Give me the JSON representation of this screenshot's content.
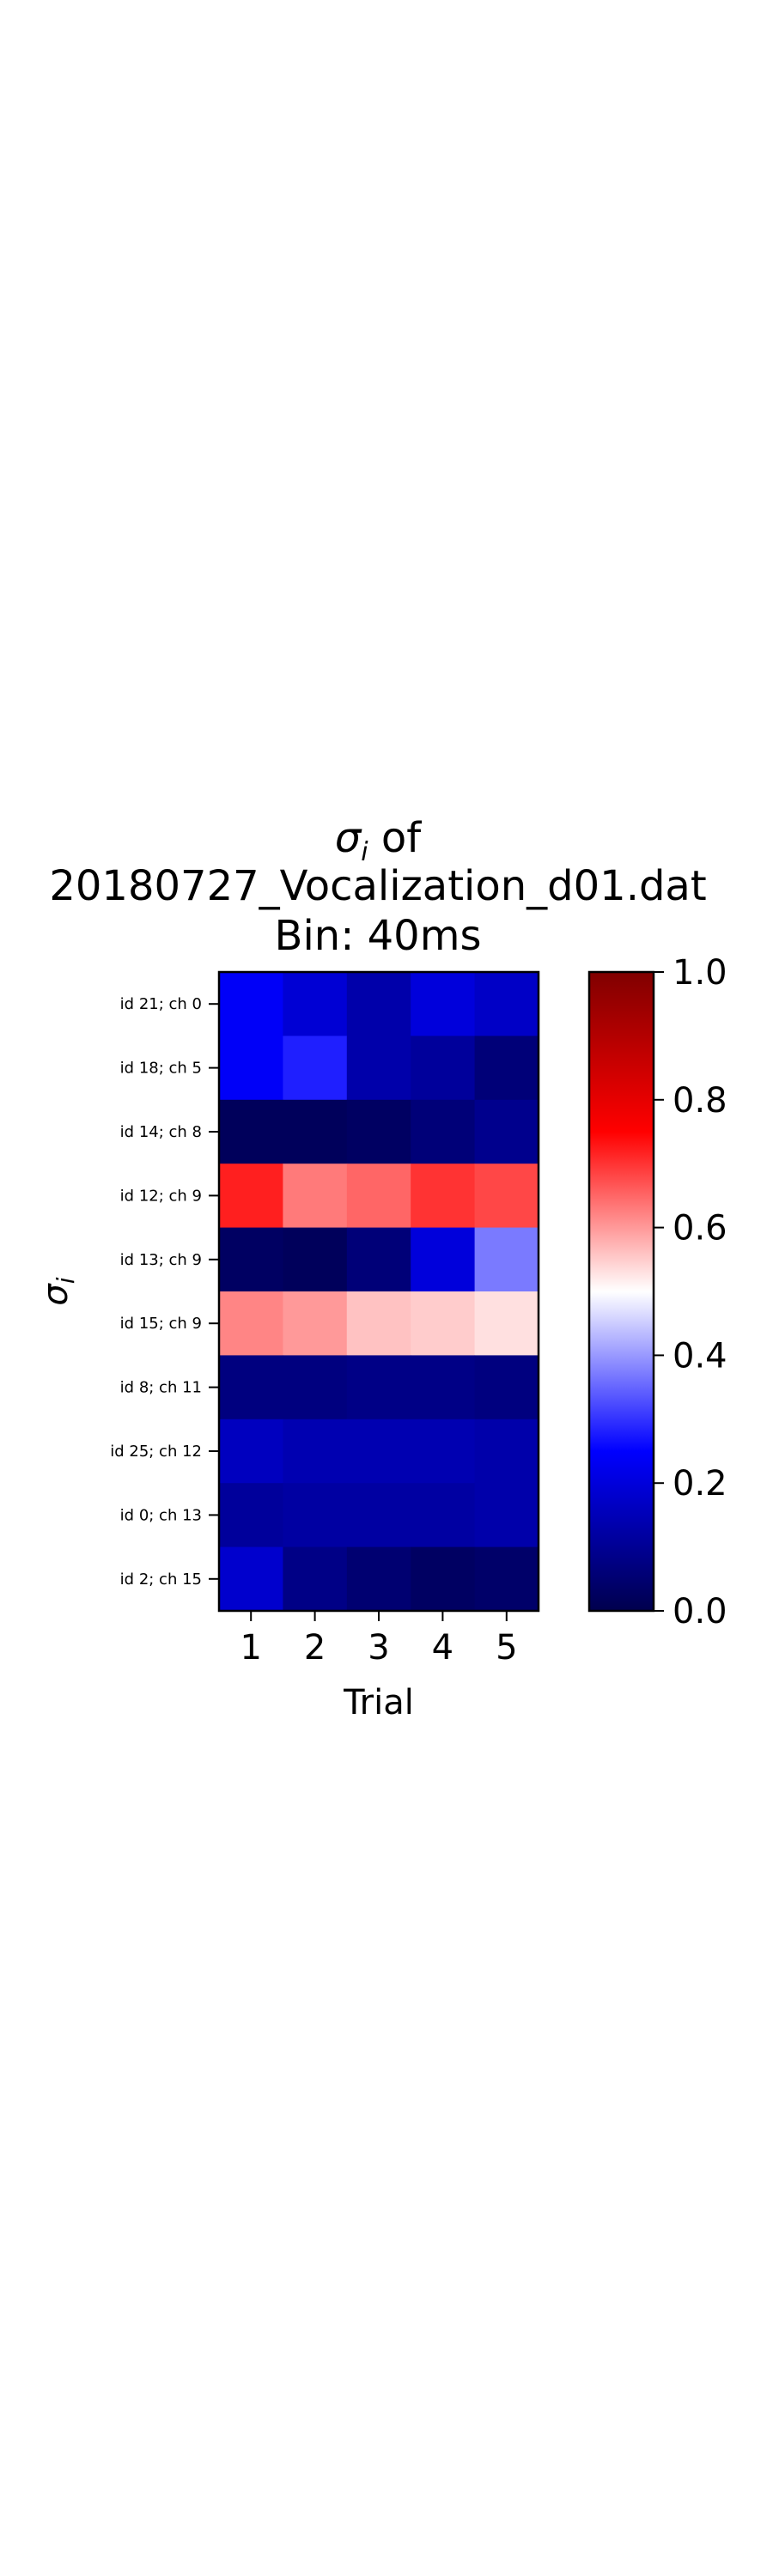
{
  "chart_data": {
    "type": "heatmap",
    "title_lines": [
      "σ",
      "i",
      " of",
      "20180727_Vocalization_d01.dat",
      "Bin: 40ms"
    ],
    "title": {
      "sigma": "σ",
      "sub": "i",
      "of": " of",
      "line2": "20180727_Vocalization_d01.dat",
      "line3": "Bin: 40ms"
    },
    "xlabel": "Trial",
    "ylabel": {
      "sigma": "σ",
      "sub": "i"
    },
    "x_categories": [
      "1",
      "2",
      "3",
      "4",
      "5"
    ],
    "y_categories": [
      "id 21; ch 0",
      "id 18; ch 5",
      "id 14; ch 8",
      "id 12; ch 9",
      "id 13; ch 9",
      "id 15; ch 9",
      "id 8; ch 11",
      "id 25; ch 12",
      "id 0; ch 13",
      "id 2; ch 15"
    ],
    "values": [
      [
        0.24,
        0.19,
        0.13,
        0.2,
        0.17
      ],
      [
        0.24,
        0.28,
        0.13,
        0.11,
        0.06
      ],
      [
        0.02,
        0.02,
        0.03,
        0.06,
        0.09
      ],
      [
        0.72,
        0.63,
        0.65,
        0.7,
        0.68
      ],
      [
        0.03,
        0.02,
        0.06,
        0.2,
        0.37
      ],
      [
        0.62,
        0.6,
        0.56,
        0.55,
        0.53
      ],
      [
        0.07,
        0.07,
        0.08,
        0.08,
        0.07
      ],
      [
        0.16,
        0.14,
        0.14,
        0.14,
        0.13
      ],
      [
        0.11,
        0.12,
        0.12,
        0.12,
        0.13
      ],
      [
        0.18,
        0.08,
        0.05,
        0.03,
        0.04
      ]
    ],
    "colorbar": {
      "range": [
        0.0,
        1.0
      ],
      "ticks": [
        "0.0",
        "0.2",
        "0.4",
        "0.6",
        "0.8",
        "1.0"
      ],
      "colormap": "seismic"
    }
  }
}
